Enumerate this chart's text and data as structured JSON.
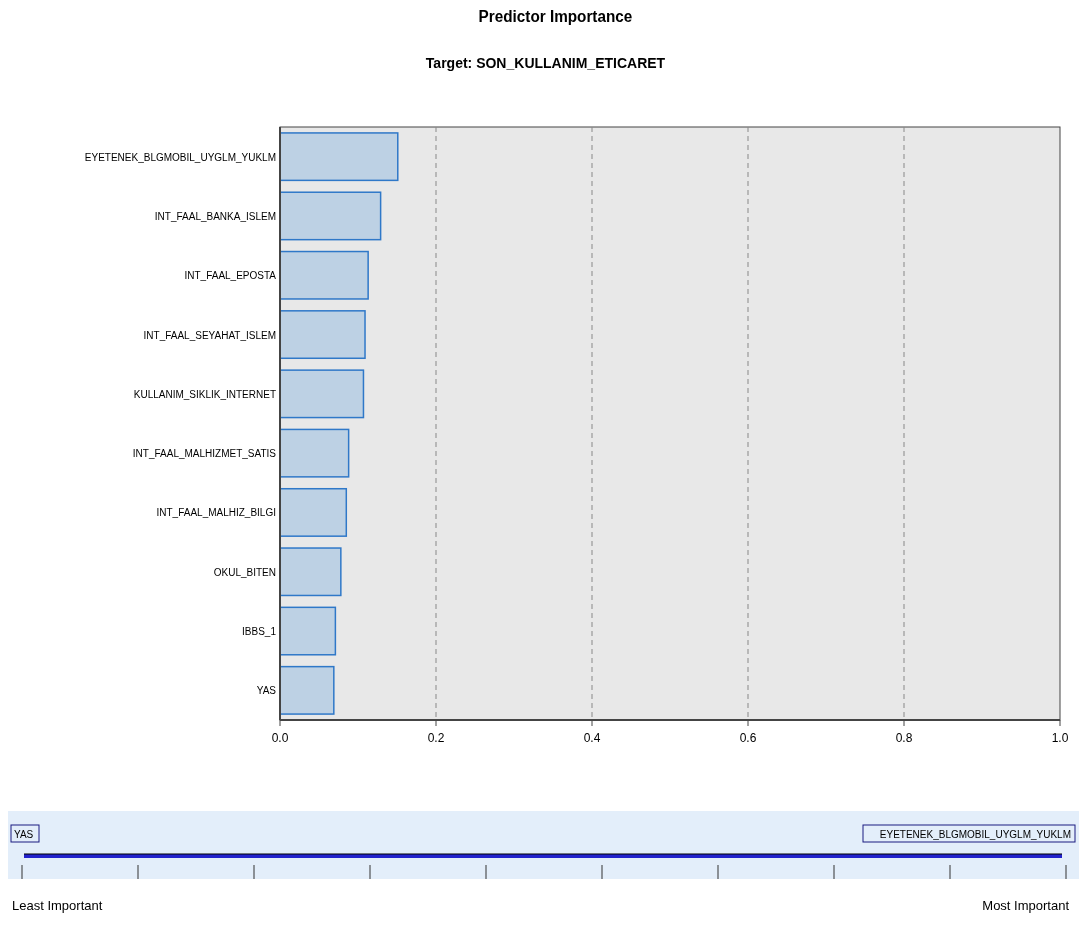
{
  "chart_data": {
    "type": "bar",
    "orientation": "horizontal",
    "title": "Predictor Importance",
    "subtitle": "Target: SON_KULLANIM_ETICARET",
    "categories": [
      "EYETENEK_BLGMOBIL_UYGLM_YUKLM",
      "INT_FAAL_BANKA_ISLEM",
      "INT_FAAL_EPOSTA",
      "INT_FAAL_SEYAHAT_ISLEM",
      "KULLANIM_SIKLIK_INTERNET",
      "INT_FAAL_MALHIZMET_SATIS",
      "INT_FAAL_MALHIZ_BILGI",
      "OKUL_BITEN",
      "IBBS_1",
      "YAS"
    ],
    "values": [
      0.151,
      0.129,
      0.113,
      0.109,
      0.107,
      0.088,
      0.085,
      0.078,
      0.071,
      0.069
    ],
    "color": "#bdd1e4",
    "xlim": [
      0,
      1
    ],
    "xticks": [
      {
        "value": 0,
        "label": "0.0"
      },
      0.2,
      0.4,
      0.6,
      0.8,
      {
        "value": 1,
        "label": "1.0"
      }
    ],
    "grid": "x",
    "annotations": [
      "YAS",
      "EYETENEK_BLGMOBIL_UYGLM_YUKLM",
      "Least Important",
      "Most Important"
    ]
  }
}
